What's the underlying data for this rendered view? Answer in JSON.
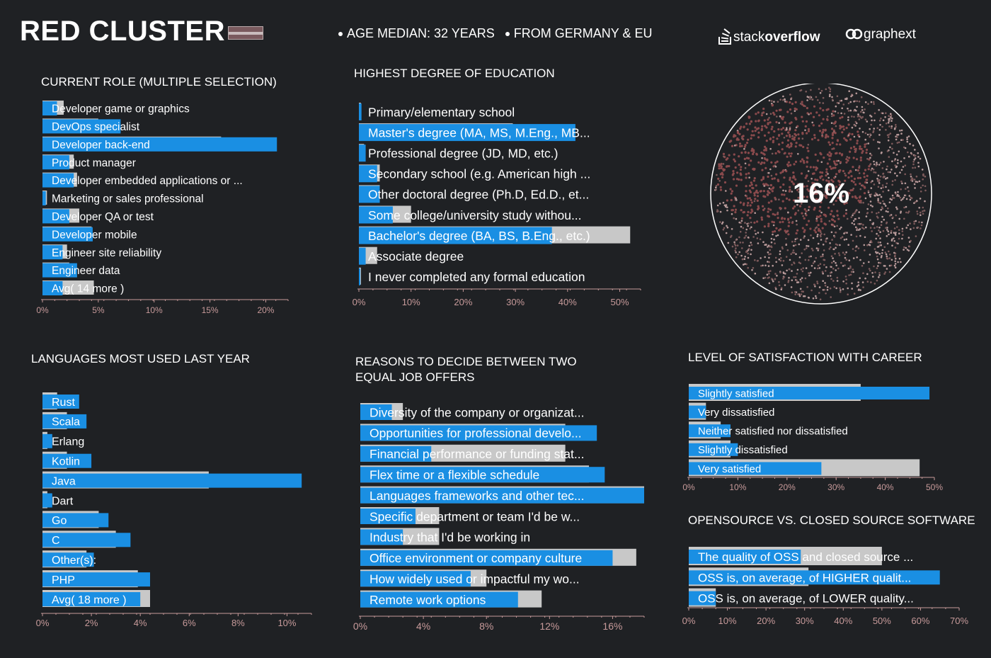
{
  "header": {
    "title": "RED CLUSTER",
    "stat1": "AGE MEDIAN: 32 YEARS",
    "stat2": "FROM GERMANY & EU",
    "logo_so_a": "stack",
    "logo_so_b": "overflow",
    "logo_gx": "graphext"
  },
  "bubble": {
    "percent": "16%"
  },
  "colors": {
    "blue": "#1a8fe3",
    "grey": "#c8c8c8",
    "bg": "#1f2124",
    "axis": "#c79a9a",
    "dots": "#b77b7b"
  },
  "chart_data": [
    {
      "id": "role",
      "type": "bar",
      "title": "CURRENT ROLE (MULTIPLE SELECTION)",
      "categories": [
        "Developer game or graphics",
        "DevOps specialist",
        "Developer back-end",
        "Product manager",
        "Developer embedded applications or ...",
        "Marketing or sales professional",
        "Developer QA or test",
        "Developer mobile",
        "Engineer site reliability",
        "Engineer data",
        "Avg( 14 more )"
      ],
      "series": [
        {
          "values": [
            1.3,
            7.0,
            21.0,
            2.4,
            2.8,
            0.3,
            2.4,
            4.5,
            1.8,
            3.1,
            1.8
          ]
        },
        {
          "values": [
            1.9,
            5.0,
            16.0,
            2.8,
            3.1,
            0.4,
            3.3,
            4.4,
            2.2,
            2.4,
            4.6
          ]
        }
      ],
      "xticks": [
        "0%",
        "5%",
        "10%",
        "15%",
        "20%"
      ],
      "xlim": [
        0,
        22
      ]
    },
    {
      "id": "education",
      "type": "bar",
      "title": "HIGHEST DEGREE OF EDUCATION",
      "categories": [
        "Primary/elementary school",
        "Master's degree (MA, MS, M.Eng., MB...",
        "Professional degree (JD, MD, etc.)",
        "Secondary school (e.g. American high ...",
        "Other doctoral degree (Ph.D, Ed.D., et...",
        "Some college/university study withou...",
        "Bachelor's degree (BA, BS, B.Eng., etc.)",
        "Associate degree",
        "I never completed any formal education"
      ],
      "series": [
        {
          "values": [
            0.5,
            41.5,
            1.3,
            3.5,
            4.0,
            6.5,
            37.0,
            1.3,
            0.2
          ]
        },
        {
          "values": [
            0.4,
            29.5,
            1.0,
            4.0,
            4.0,
            10.0,
            52.0,
            3.5,
            0.4
          ]
        }
      ],
      "xticks": [
        "0%",
        "10%",
        "20%",
        "30%",
        "40%",
        "50%"
      ],
      "xlim": [
        0,
        54
      ]
    },
    {
      "id": "languages",
      "type": "bar",
      "title": "LANGUAGES MOST USED LAST YEAR",
      "categories": [
        "Rust",
        "Scala",
        "Erlang",
        "Kotlin",
        "Java",
        "Dart",
        "Go",
        "C",
        "Other(s):",
        "PHP",
        "Avg( 18 more )"
      ],
      "series": [
        {
          "values": [
            1.5,
            1.8,
            0.4,
            2.0,
            10.6,
            0.4,
            2.7,
            3.6,
            2.1,
            4.4,
            4.0
          ]
        },
        {
          "values": [
            0.6,
            1.0,
            0.2,
            1.0,
            6.8,
            0.2,
            2.3,
            3.0,
            1.8,
            3.9,
            4.4
          ]
        }
      ],
      "xticks": [
        "0%",
        "2%",
        "4%",
        "6%",
        "8%",
        "10%"
      ],
      "xlim": [
        0,
        11
      ]
    },
    {
      "id": "reasons",
      "type": "bar",
      "title": "REASONS TO DECIDE BETWEEN TWO",
      "title2": "EQUAL JOB OFFERS",
      "categories": [
        "Diversity of the company or organizat...",
        "Opportunities for professional develo...",
        "Financial performance or funding stat...",
        "Flex time or a flexible schedule",
        "Languages frameworks and other tec...",
        "Specific department or team I'd be w...",
        "Industry that I'd be working in",
        "Office environment or company culture",
        "How widely used or impactful my wo...",
        "Remote work options"
      ],
      "series": [
        {
          "values": [
            2.0,
            15.0,
            4.5,
            15.5,
            18.0,
            3.5,
            2.7,
            16.0,
            7.0,
            10.0
          ]
        },
        {
          "values": [
            2.7,
            13.0,
            13.0,
            14.5,
            18.0,
            5.0,
            5.0,
            17.5,
            8.0,
            11.5
          ]
        }
      ],
      "xticks": [
        "0%",
        "4%",
        "8%",
        "12%",
        "16%"
      ],
      "xlim": [
        0,
        18
      ]
    },
    {
      "id": "satisfaction",
      "type": "bar",
      "title": "LEVEL OF SATISFACTION WITH CAREER",
      "categories": [
        "Slightly satisfied",
        "Very dissatisfied",
        "Neither satisfied nor dissatisfied",
        "Slightly dissatisfied",
        "Very satisfied"
      ],
      "series": [
        {
          "values": [
            49.0,
            3.5,
            8.5,
            10.0,
            27.0
          ]
        },
        {
          "values": [
            35.0,
            3.5,
            6.5,
            8.5,
            47.0
          ]
        }
      ],
      "xticks": [
        "0%",
        "10%",
        "20%",
        "30%",
        "40%",
        "50%"
      ],
      "xlim": [
        0,
        50
      ]
    },
    {
      "id": "opensource",
      "type": "bar",
      "title": "OPENSOURCE VS. CLOSED SOURCE SOFTWARE",
      "categories": [
        "The quality of OSS and closed source ...",
        "OSS is, on average, of HIGHER qualit...",
        "OSS is, on average, of LOWER quality..."
      ],
      "series": [
        {
          "values": [
            29.0,
            65.0,
            7.0
          ]
        },
        {
          "values": [
            50.0,
            31.0,
            7.0
          ]
        }
      ],
      "xticks": [
        "0%",
        "10%",
        "20%",
        "30%",
        "40%",
        "50%",
        "60%",
        "70%"
      ],
      "xlim": [
        0,
        70
      ]
    }
  ]
}
